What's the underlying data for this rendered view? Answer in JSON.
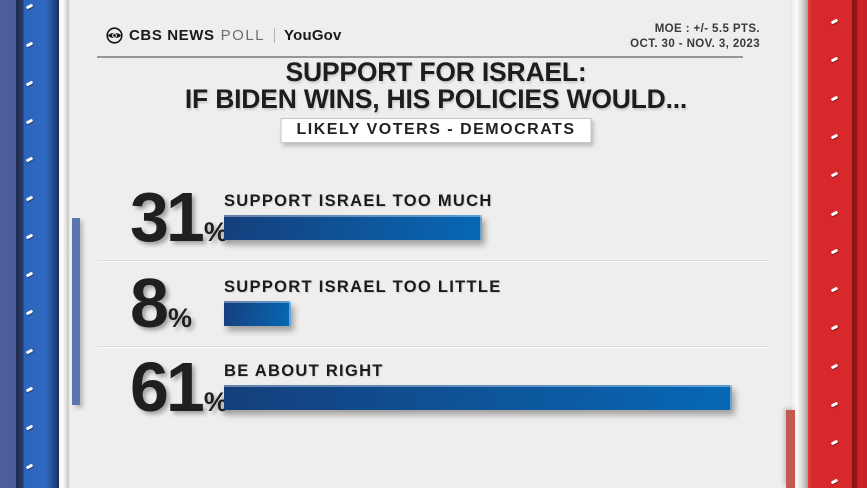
{
  "header": {
    "brand_cbs": "CBS NEWS",
    "brand_poll": "POLL",
    "brand_divider": "",
    "brand_partner": "YouGov",
    "moe_line1": "MOE : +/- 5.5 PTS.",
    "moe_line2": "OCT. 30 - NOV. 3, 2023"
  },
  "title": {
    "line1": "SUPPORT FOR ISRAEL:",
    "line2": "IF BIDEN WINS, HIS POLICIES WOULD...",
    "badge": "LIKELY VOTERS - DEMOCRATS"
  },
  "chart_data": {
    "type": "bar",
    "orientation": "horizontal",
    "title": "SUPPORT FOR ISRAEL: IF BIDEN WINS, HIS POLICIES WOULD...",
    "subtitle": "LIKELY VOTERS - DEMOCRATS",
    "categories": [
      "SUPPORT ISRAEL TOO MUCH",
      "SUPPORT ISRAEL TOO LITTLE",
      "BE ABOUT RIGHT"
    ],
    "values": [
      31,
      8,
      61
    ],
    "unit": "%",
    "xlim": [
      0,
      100
    ],
    "bar_gradient": [
      "#153f7c",
      "#0768b5"
    ],
    "source_note": "MOE : +/- 5.5 PTS. OCT. 30 - NOV. 3, 2023"
  },
  "colors": {
    "panel_bg": "#efeeec",
    "text": "#1d1d1d",
    "left_pillar_blue": "#2c65bc",
    "right_pillar_red": "#d7282c"
  }
}
